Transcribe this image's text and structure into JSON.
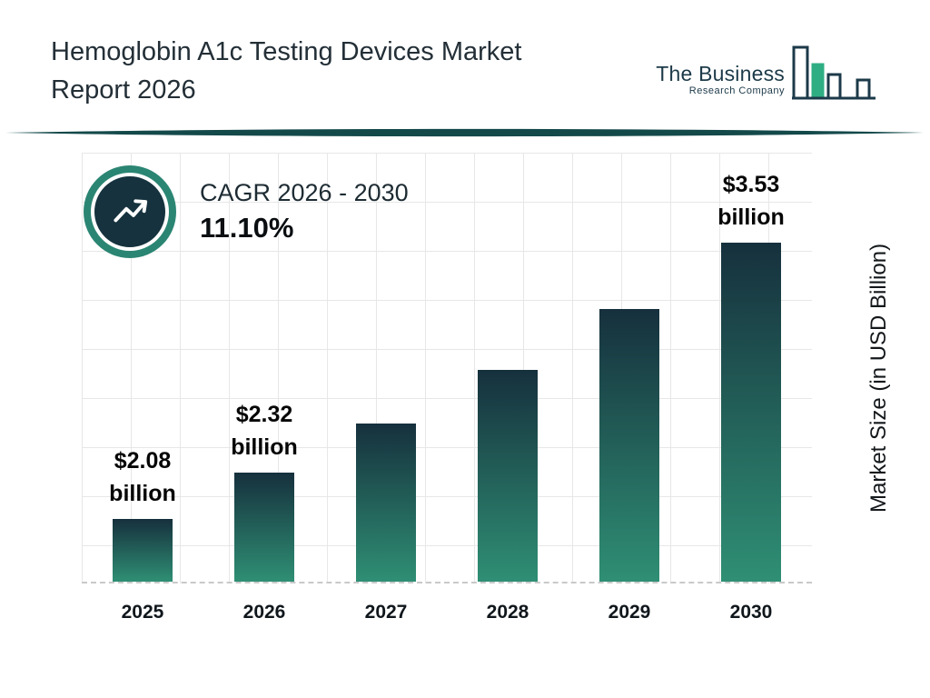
{
  "header": {
    "title_line1": "Hemoglobin A1c Testing Devices Market",
    "title_line2": "Report 2026",
    "logo": {
      "name": "The Business",
      "tagline": "Research Company"
    }
  },
  "cagr": {
    "label": "CAGR 2026 - 2030",
    "value": "11.10%"
  },
  "chart_data": {
    "type": "bar",
    "title": "Hemoglobin A1c Testing Devices Market Report 2026",
    "categories": [
      "2025",
      "2026",
      "2027",
      "2028",
      "2029",
      "2030"
    ],
    "values": [
      2.08,
      2.32,
      2.58,
      2.86,
      3.18,
      3.53
    ],
    "unit": "USD Billion",
    "xlabel": "",
    "ylabel": "Market Size (in USD Billion)",
    "ylim": [
      1.75,
      4.0
    ],
    "grid": true,
    "legend": false,
    "bar_labels": [
      {
        "value": "$2.08",
        "unit": "billion"
      },
      {
        "value": "$2.32",
        "unit": "billion"
      },
      null,
      null,
      null,
      {
        "value": "$3.53",
        "unit": "billion"
      }
    ],
    "colors": {
      "bar_gradient_top": "#16303d",
      "bar_gradient_bottom": "#2f8f74",
      "grid_line": "#e7e7e7",
      "baseline": "#c9c9c9"
    }
  },
  "theme": {
    "accent_teal": "#2b8573",
    "dark_navy": "#15323e",
    "logo_green": "#2fae84",
    "logo_navy": "#1c3a49"
  }
}
